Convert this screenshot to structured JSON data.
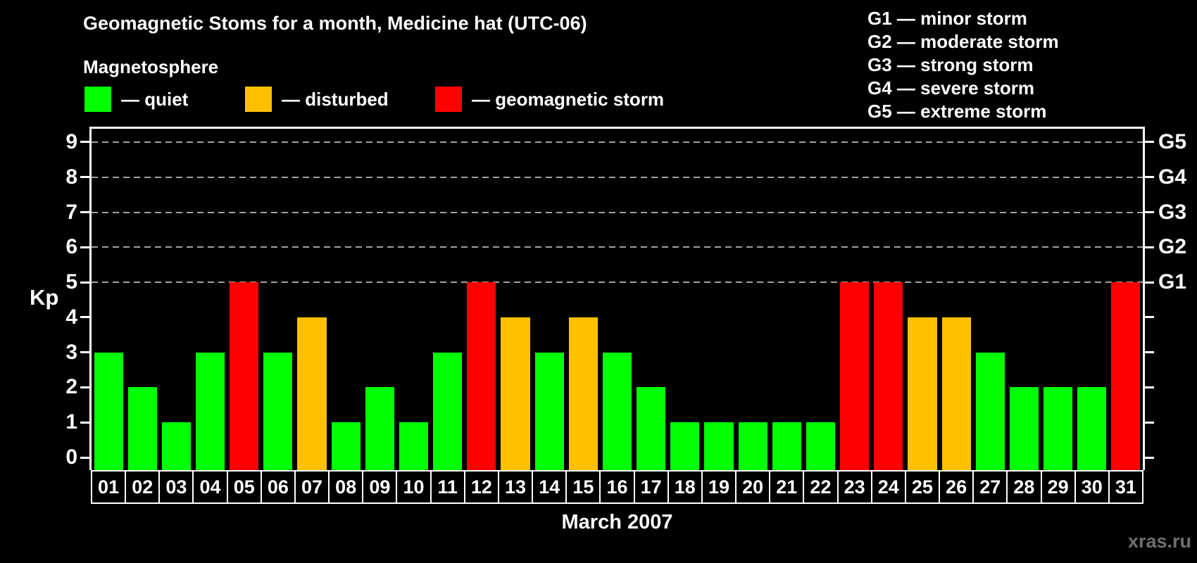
{
  "title": "Geomagnetic Stoms for a month, Medicine hat (UTC-06)",
  "magnetosphere_legend": {
    "heading": "Magnetosphere",
    "items": [
      {
        "state": "quiet",
        "color": "#00ff00",
        "label": "— quiet"
      },
      {
        "state": "disturbed",
        "color": "#ffc000",
        "label": "— disturbed"
      },
      {
        "state": "storm",
        "color": "#ff0000",
        "label": "— geomagnetic storm"
      }
    ]
  },
  "g_scale_legend": [
    "G1 — minor storm",
    "G2 — moderate storm",
    "G3 — strong storm",
    "G4 — severe storm",
    "G5 — extreme storm"
  ],
  "watermark": "xras.ru",
  "chart_data": {
    "type": "bar",
    "title": "Geomagnetic Stoms for a month, Medicine hat (UTC-06)",
    "xlabel": "March 2007",
    "ylabel": "Kp",
    "ylim": [
      0,
      9.6
    ],
    "yticks": [
      0,
      1,
      2,
      3,
      4,
      5,
      6,
      7,
      8,
      9
    ],
    "grid": "dashed horizontal lines at storm levels",
    "gridlines_at": [
      5,
      6,
      7,
      8,
      9
    ],
    "right_axis": [
      {
        "kp": 5,
        "label": "G1"
      },
      {
        "kp": 6,
        "label": "G2"
      },
      {
        "kp": 7,
        "label": "G3"
      },
      {
        "kp": 8,
        "label": "G4"
      },
      {
        "kp": 9,
        "label": "G5"
      }
    ],
    "legend_position": "top-left",
    "categories": [
      "01",
      "02",
      "03",
      "04",
      "05",
      "06",
      "07",
      "08",
      "09",
      "10",
      "11",
      "12",
      "13",
      "14",
      "15",
      "16",
      "17",
      "18",
      "19",
      "20",
      "21",
      "22",
      "23",
      "24",
      "25",
      "26",
      "27",
      "28",
      "29",
      "30",
      "31"
    ],
    "values": [
      3,
      2,
      1,
      3,
      5,
      3,
      4,
      1,
      2,
      1,
      3,
      5,
      4,
      3,
      4,
      3,
      2,
      1,
      1,
      1,
      1,
      1,
      5,
      5,
      4,
      4,
      3,
      2,
      2,
      2,
      5
    ],
    "states": [
      "quiet",
      "quiet",
      "quiet",
      "quiet",
      "storm",
      "quiet",
      "disturbed",
      "quiet",
      "quiet",
      "quiet",
      "quiet",
      "storm",
      "disturbed",
      "quiet",
      "disturbed",
      "quiet",
      "quiet",
      "quiet",
      "quiet",
      "quiet",
      "quiet",
      "quiet",
      "storm",
      "storm",
      "disturbed",
      "disturbed",
      "quiet",
      "quiet",
      "quiet",
      "quiet",
      "storm"
    ],
    "colors": {
      "quiet": "#00ff00",
      "disturbed": "#ffc000",
      "storm": "#ff0000"
    }
  }
}
